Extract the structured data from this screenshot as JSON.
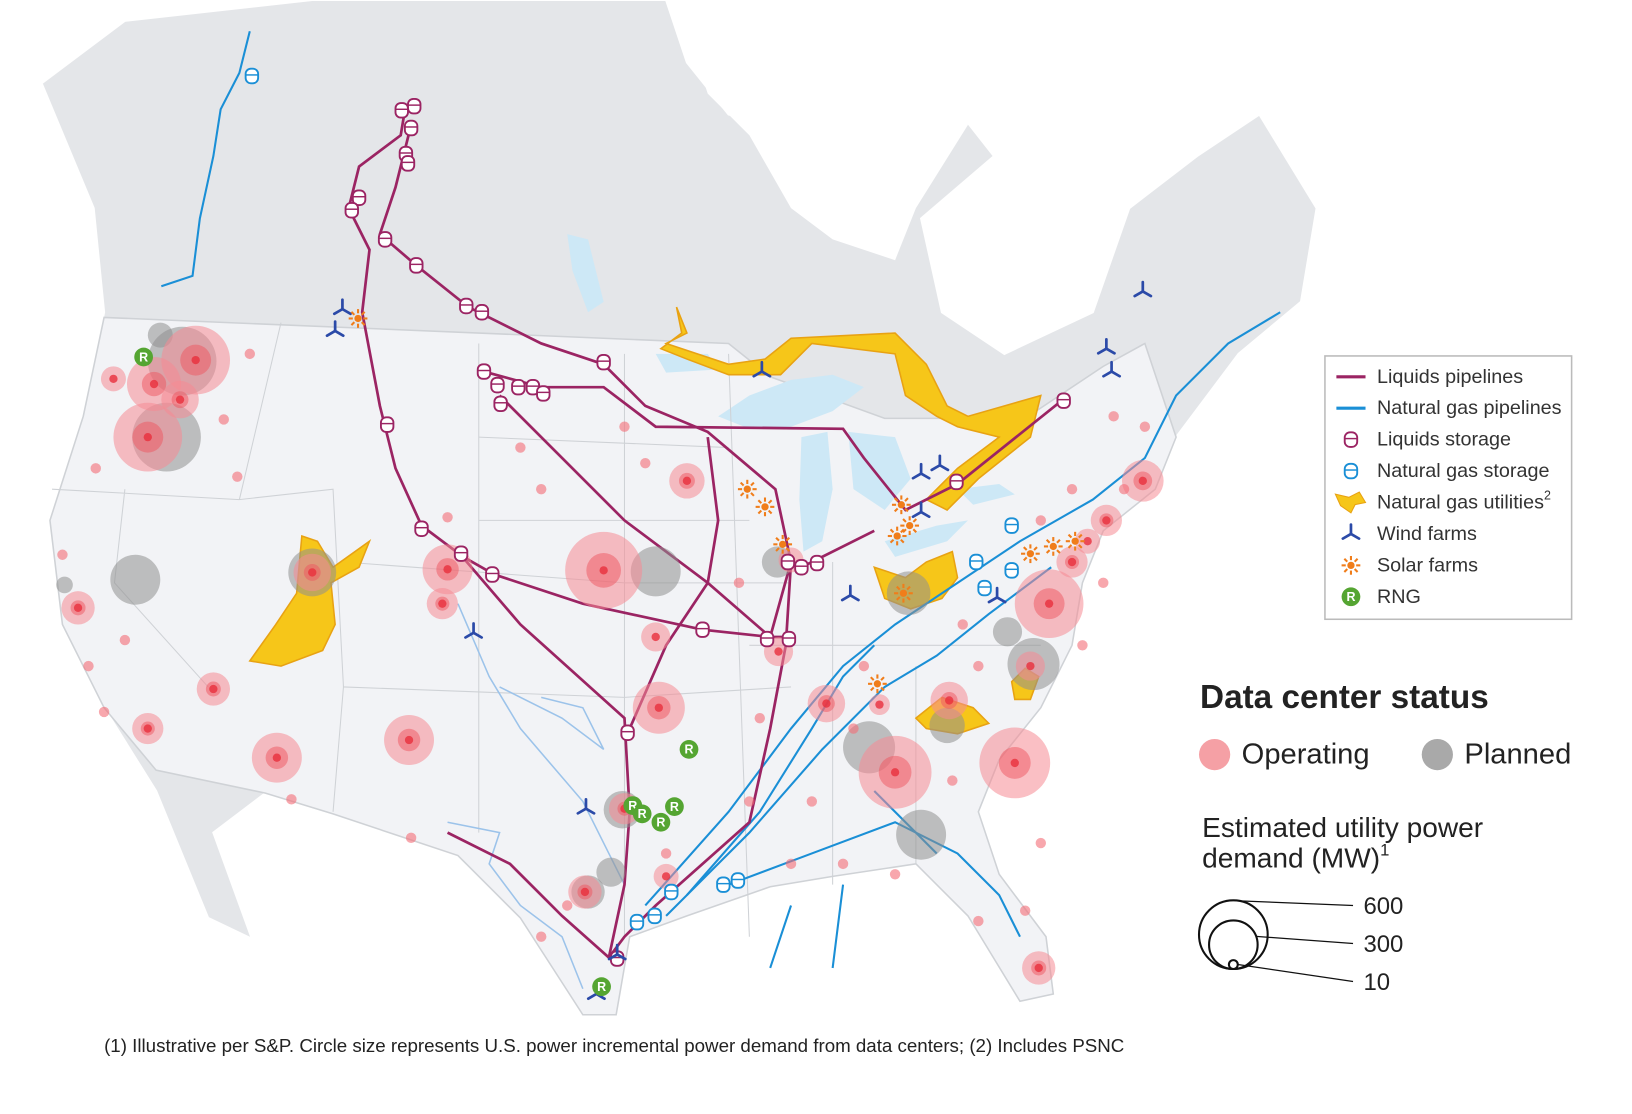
{
  "legend": {
    "items": [
      {
        "label": "Liquids pipelines"
      },
      {
        "label": "Natural gas pipelines"
      },
      {
        "label": "Liquids storage"
      },
      {
        "label": "Natural gas storage"
      },
      {
        "label": "Natural gas utilities",
        "note": "2"
      },
      {
        "label": "Wind farms"
      },
      {
        "label": "Solar farms"
      },
      {
        "label": "RNG"
      }
    ]
  },
  "rng_letter": "R",
  "status": {
    "title": "Data center status",
    "operating": "Operating",
    "planned": "Planned"
  },
  "size_legend": {
    "title_line1": "Estimated utility power",
    "title_line2": "demand (MW)",
    "note": "1",
    "sizes": [
      600,
      300,
      10
    ]
  },
  "footnote": "(1) Illustrative per S&P. Circle size represents U.S. power incremental power demand from data centers; (2) Includes PSNC"
}
